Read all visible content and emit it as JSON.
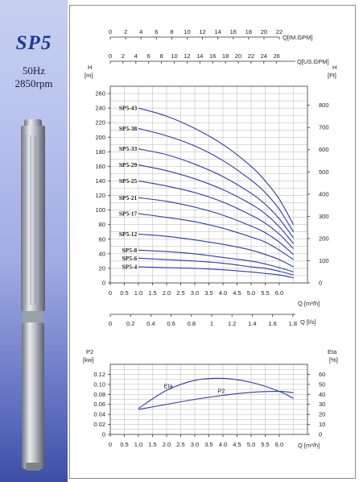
{
  "brand": {
    "model": "SP5",
    "frequency": "50Hz",
    "speed": "2850rpm"
  },
  "colors": {
    "curve": "#2e3d92",
    "sidebar_top": "#c7cff0",
    "sidebar_bottom": "#3d4ea6"
  },
  "chart_data": [
    {
      "type": "line",
      "title": "",
      "y_left_label": "H [m]",
      "y_right_label": "H [Ft]",
      "x_label": "Q [m³/h]",
      "xlim": [
        0,
        7
      ],
      "ylim": [
        0,
        270
      ],
      "x_ticks": [
        "0",
        "0.5",
        "1.0",
        "1.5",
        "2.0",
        "2.5",
        "3.0",
        "3.5",
        "4.0",
        "4.5",
        "5.0",
        "5.5",
        "6.0"
      ],
      "y_left_ticks": [
        0,
        20,
        40,
        60,
        80,
        100,
        120,
        140,
        160,
        180,
        200,
        220,
        240,
        260
      ],
      "y_right_ticks": [
        0,
        100,
        200,
        300,
        400,
        500,
        600,
        700,
        800
      ],
      "top_axis_1": {
        "label": "Q[IM.GPM]",
        "ticks": [
          0,
          2,
          4,
          6,
          8,
          10,
          12,
          14,
          16,
          18,
          20,
          22
        ]
      },
      "top_axis_2": {
        "label": "Q[US.GPM]",
        "ticks": [
          0,
          2,
          4,
          6,
          8,
          10,
          12,
          14,
          16,
          18,
          20,
          22,
          24,
          26
        ]
      },
      "bottom_axis_2": {
        "label": "Q [l/s]",
        "ticks": [
          0,
          0.2,
          0.4,
          0.6,
          0.8,
          1.0,
          1.2,
          1.4,
          1.6,
          1.8
        ]
      },
      "grid": true,
      "series": [
        {
          "name": "SP5-43",
          "x": [
            1.0,
            2.0,
            3.0,
            4.0,
            5.0,
            5.5,
            6.0,
            6.5
          ],
          "y": [
            240,
            229,
            212,
            190,
            160,
            140,
            115,
            80
          ]
        },
        {
          "name": "SP5-38",
          "x": [
            1.0,
            2.0,
            3.0,
            4.0,
            5.0,
            5.5,
            6.0,
            6.5
          ],
          "y": [
            212,
            202,
            188,
            168,
            141,
            124,
            101,
            70
          ]
        },
        {
          "name": "SP5-33",
          "x": [
            1.0,
            2.0,
            3.0,
            4.0,
            5.0,
            5.5,
            6.0,
            6.5
          ],
          "y": [
            184,
            176,
            163,
            146,
            123,
            108,
            88,
            62
          ]
        },
        {
          "name": "SP5-29",
          "x": [
            1.0,
            2.0,
            3.0,
            4.0,
            5.0,
            5.5,
            6.0,
            6.5
          ],
          "y": [
            162,
            154,
            143,
            128,
            108,
            95,
            77,
            54
          ]
        },
        {
          "name": "SP5-25",
          "x": [
            1.0,
            2.0,
            3.0,
            4.0,
            5.0,
            5.5,
            6.0,
            6.5
          ],
          "y": [
            140,
            133,
            124,
            111,
            93,
            82,
            67,
            47
          ]
        },
        {
          "name": "SP5-21",
          "x": [
            1.0,
            2.0,
            3.0,
            4.0,
            5.0,
            5.5,
            6.0,
            6.5
          ],
          "y": [
            117,
            112,
            104,
            93,
            78,
            69,
            56,
            39
          ]
        },
        {
          "name": "SP5-17",
          "x": [
            1.0,
            2.0,
            3.0,
            4.0,
            5.0,
            5.5,
            6.0,
            6.5
          ],
          "y": [
            95,
            90,
            84,
            75,
            63,
            56,
            45,
            32
          ]
        },
        {
          "name": "SP5-12",
          "x": [
            1.0,
            2.0,
            3.0,
            4.0,
            5.0,
            5.5,
            6.0,
            6.5
          ],
          "y": [
            67,
            64,
            59,
            53,
            45,
            39,
            32,
            22
          ]
        },
        {
          "name": "SP5-8",
          "x": [
            1.0,
            2.0,
            3.0,
            4.0,
            5.0,
            5.5,
            6.0,
            6.5
          ],
          "y": [
            45,
            43,
            40,
            35,
            30,
            26,
            21,
            15
          ]
        },
        {
          "name": "SP5-6",
          "x": [
            1.0,
            2.0,
            3.0,
            4.0,
            5.0,
            5.5,
            6.0,
            6.5
          ],
          "y": [
            34,
            32,
            30,
            27,
            22,
            20,
            16,
            11
          ]
        },
        {
          "name": "SP5-4",
          "x": [
            1.0,
            2.0,
            3.0,
            4.0,
            5.0,
            5.5,
            6.0,
            6.5
          ],
          "y": [
            22,
            21,
            20,
            18,
            15,
            13,
            11,
            7
          ]
        }
      ]
    },
    {
      "type": "line",
      "title": "",
      "y_left_label": "P2 [kw]",
      "y_right_label": "Eta [%]",
      "x_label": "Q [m³/h]",
      "xlim": [
        0,
        7
      ],
      "ylim": [
        0,
        0.14
      ],
      "x_ticks": [
        "0",
        "0.5",
        "1.0",
        "1.5",
        "2.0",
        "2.5",
        "3.0",
        "3.5",
        "4.0",
        "4.5",
        "5.0",
        "5.5",
        "6.0"
      ],
      "y_left_ticks": [
        "0",
        "0.02",
        "0.04",
        "0.06",
        "0.08",
        "0.10",
        "0.12"
      ],
      "y_right_ticks": [
        0,
        10,
        20,
        30,
        40,
        50,
        60
      ],
      "grid": true,
      "series": [
        {
          "name": "Eta",
          "axis": "right",
          "x": [
            1.0,
            2.0,
            3.0,
            4.0,
            5.0,
            6.0,
            6.5
          ],
          "y": [
            26,
            44,
            54,
            56,
            52,
            43,
            36
          ]
        },
        {
          "name": "P2",
          "axis": "left",
          "x": [
            1.0,
            2.0,
            3.0,
            4.0,
            5.0,
            6.0,
            6.5
          ],
          "y": [
            0.05,
            0.06,
            0.07,
            0.078,
            0.084,
            0.086,
            0.083
          ]
        }
      ]
    }
  ]
}
